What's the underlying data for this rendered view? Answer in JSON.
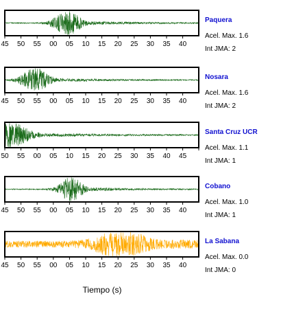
{
  "chart_data": {
    "type": "line",
    "xlabel": "Tiempo (s)",
    "time_tick_labels": [
      "45",
      "50",
      "55",
      "00",
      "05",
      "10",
      "15",
      "20",
      "25",
      "30",
      "35",
      "40"
    ],
    "panels": [
      {
        "station": "Paquera",
        "acel_label": "Acel. Max. 1.6",
        "int_label": "Int JMA: 2",
        "color": "#1a6b1a",
        "tick_labels": [
          "45",
          "50",
          "55",
          "00",
          "05",
          "10",
          "15",
          "20",
          "25",
          "30",
          "35",
          "40"
        ],
        "burst_center_tick": 3.9,
        "burst_width_ticks": 0.9,
        "peak_amplitude": 1.0
      },
      {
        "station": "Nosara",
        "acel_label": "Acel. Max. 1.6",
        "int_label": "Int JMA: 2",
        "color": "#1a6b1a",
        "tick_labels": [
          "45",
          "50",
          "55",
          "00",
          "05",
          "10",
          "15",
          "20",
          "25",
          "30",
          "35",
          "40"
        ],
        "burst_center_tick": 1.9,
        "burst_width_ticks": 0.9,
        "peak_amplitude": 1.0
      },
      {
        "station": "Santa Cruz UCR",
        "acel_label": "Acel. Max. 1.1",
        "int_label": "Int JMA: 1",
        "color": "#1a6b1a",
        "tick_labels": [
          "50",
          "55",
          "00",
          "05",
          "10",
          "15",
          "20",
          "25",
          "30",
          "35",
          "40",
          "45"
        ],
        "burst_center_tick": 0.3,
        "burst_width_ticks": 1.4,
        "peak_amplitude": 1.0
      },
      {
        "station": "Cobano",
        "acel_label": "Acel. Max. 1.0",
        "int_label": "Int JMA: 1",
        "color": "#1a6b1a",
        "tick_labels": [
          "45",
          "50",
          "55",
          "00",
          "05",
          "10",
          "15",
          "20",
          "25",
          "30",
          "35",
          "40"
        ],
        "burst_center_tick": 4.1,
        "burst_width_ticks": 0.8,
        "peak_amplitude": 1.0
      },
      {
        "station": "La Sabana",
        "acel_label": "Acel. Max. 0.0",
        "int_label": "Int JMA: 0",
        "color": "#ffaa00",
        "tick_labels": [
          "45",
          "50",
          "55",
          "00",
          "05",
          "10",
          "15",
          "20",
          "25",
          "30",
          "35",
          "40"
        ],
        "burst_center_tick": 7.2,
        "burst_width_ticks": 1.6,
        "peak_amplitude": 1.0
      }
    ]
  }
}
